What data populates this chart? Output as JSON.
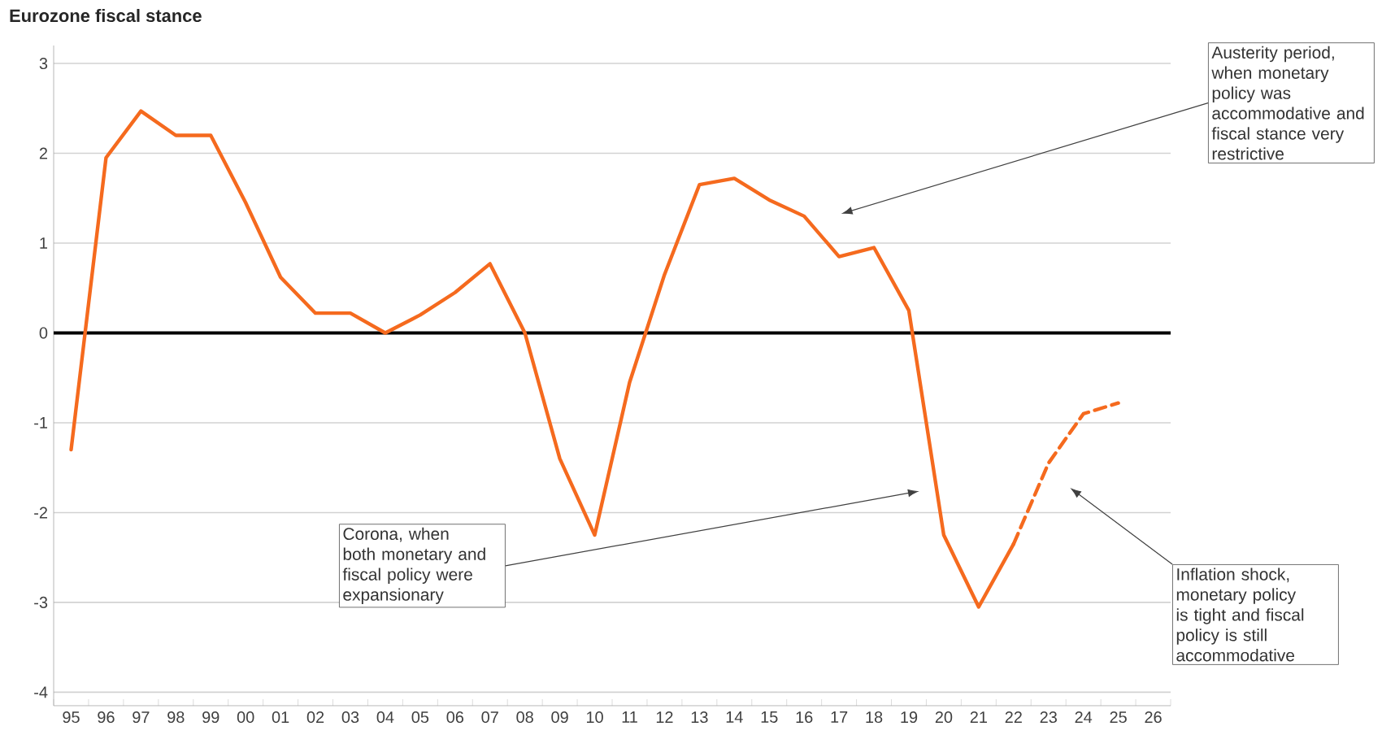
{
  "chart_data": {
    "type": "line",
    "title": "Eurozone fiscal stance",
    "categories": [
      "95",
      "96",
      "97",
      "98",
      "99",
      "00",
      "01",
      "02",
      "03",
      "04",
      "05",
      "06",
      "07",
      "08",
      "09",
      "10",
      "11",
      "12",
      "13",
      "14",
      "15",
      "16",
      "17",
      "18",
      "19",
      "20",
      "21",
      "22",
      "23",
      "24",
      "25",
      "26"
    ],
    "series": [
      {
        "color": "#f56a1e",
        "line_style": "solid",
        "values": [
          -1.3,
          1.95,
          2.47,
          2.2,
          2.2,
          1.45,
          0.62,
          0.22,
          0.22,
          0.0,
          0.2,
          0.45,
          0.77,
          0.0,
          -1.4,
          -2.25,
          -0.55,
          0.65,
          1.65,
          1.72,
          1.48,
          1.3,
          0.85,
          0.95,
          0.25,
          -2.25,
          -3.05,
          -2.35,
          null,
          null,
          null,
          null
        ]
      },
      {
        "color": "#f56a1e",
        "line_style": "dashed",
        "values": [
          null,
          null,
          null,
          null,
          null,
          null,
          null,
          null,
          null,
          null,
          null,
          null,
          null,
          null,
          null,
          null,
          null,
          null,
          null,
          null,
          null,
          null,
          null,
          null,
          null,
          null,
          null,
          -2.35,
          -1.45,
          -0.9,
          -0.78,
          null
        ]
      }
    ],
    "ylim": [
      -4.15,
      3.2
    ],
    "yticks": [
      -4,
      -3,
      -2,
      -1,
      0,
      1,
      2,
      3
    ],
    "grid": "y",
    "ref_lines": [
      {
        "axis": "y",
        "value": 0,
        "color": "#000000"
      }
    ],
    "annotations": [
      "Austerity period, when monetary policy was accommodative and fiscal stance very restrictive",
      "Corona, when both monetary and fiscal policy were expansionary",
      "Inflation shock, monetary policy is tight and fiscal policy is still accommodative"
    ]
  }
}
